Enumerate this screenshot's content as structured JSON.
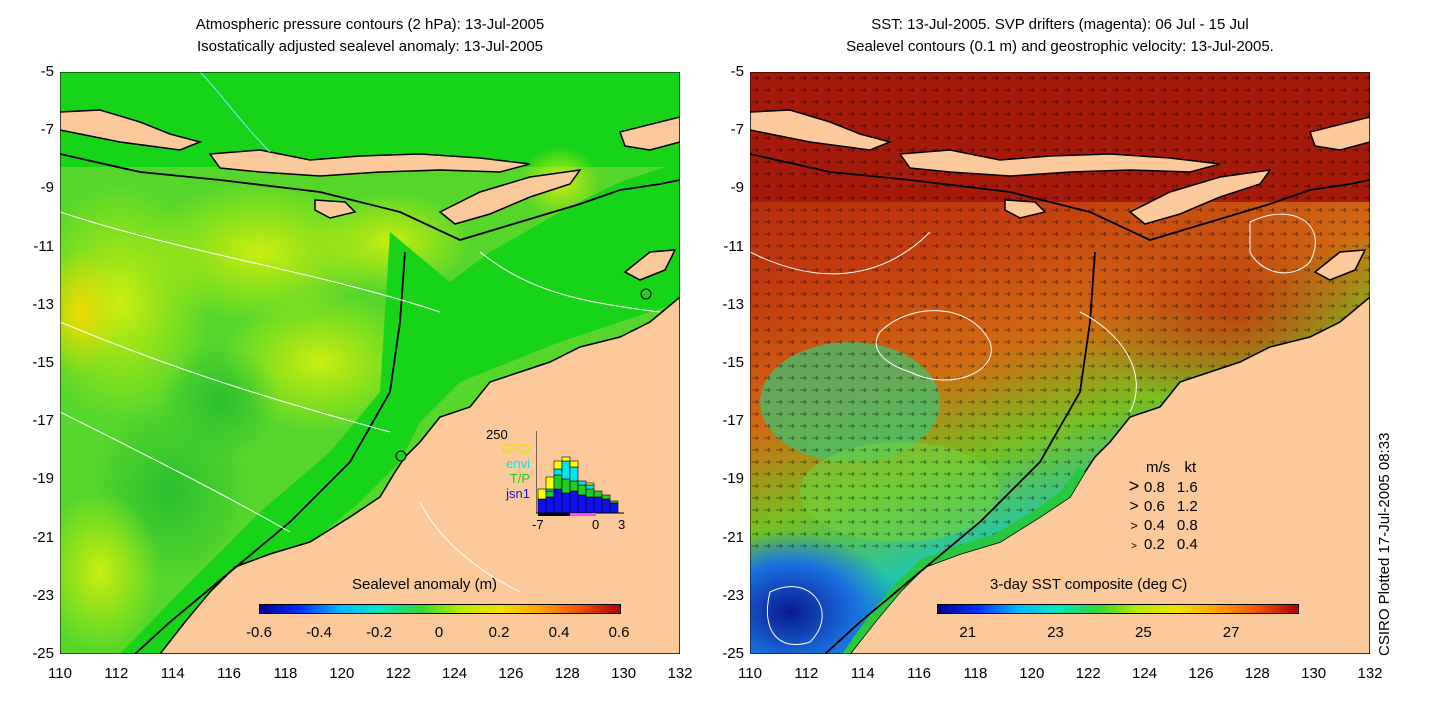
{
  "left_panel": {
    "title_line1": "Atmospheric pressure contours (2 hPa): 13-Jul-2005",
    "title_line2": "Isostatically adjusted sealevel anomaly: 13-Jul-2005",
    "colorbar_label": "Sealevel anomaly (m)",
    "colorbar_ticks": [
      "-0.6",
      "-0.4",
      "-0.2",
      "0",
      "0.2",
      "0.4",
      "0.6"
    ],
    "inset": {
      "ymax_label": "250",
      "legend": [
        {
          "label": "GFO",
          "color": "#ffff00"
        },
        {
          "label": "envi",
          "color": "#00e5ee"
        },
        {
          "label": "T/P",
          "color": "#22cc22"
        },
        {
          "label": "jsn1",
          "color": "#1010ee"
        }
      ],
      "x_ticks": [
        "-7",
        "0",
        "3"
      ]
    }
  },
  "right_panel": {
    "title_line1": "SST: 13-Jul-2005. SVP drifters (magenta): 06 Jul - 15 Jul",
    "title_line2": "Sealevel contours (0.1 m) and geostrophic velocity: 13-Jul-2005.",
    "colorbar_label": "3-day SST composite (deg C)",
    "colorbar_ticks": [
      "21",
      "23",
      "25",
      "27"
    ],
    "velocity_legend": {
      "header_ms": "m/s",
      "header_kt": "kt",
      "rows": [
        {
          "ms": "0.8",
          "kt": "1.6"
        },
        {
          "ms": "0.6",
          "kt": "1.2"
        },
        {
          "ms": "0.4",
          "kt": "0.8"
        },
        {
          "ms": "0.2",
          "kt": "0.4"
        }
      ]
    }
  },
  "axes": {
    "y_ticks": [
      "-5",
      "-7",
      "-9",
      "-11",
      "-13",
      "-15",
      "-17",
      "-19",
      "-21",
      "-23",
      "-25"
    ],
    "x_ticks": [
      "110",
      "112",
      "114",
      "116",
      "118",
      "120",
      "122",
      "124",
      "126",
      "128",
      "130",
      "132"
    ]
  },
  "credit": "CSIRO Plotted 17-Jul-2005 08:33",
  "colors": {
    "land": "#fcc99b",
    "ocean_green": "#22d322",
    "sst_warm": "#b8320e"
  }
}
